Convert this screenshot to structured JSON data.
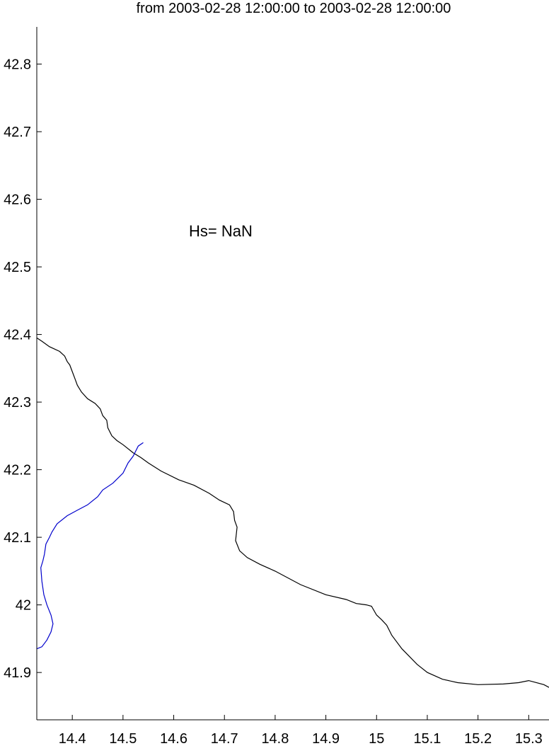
{
  "title": "from 2003-02-28 12:00:00 to 2003-02-28 12:00:00",
  "annotation": "Hs= NaN",
  "colors": {
    "coastline": "#000000",
    "river": "#0000cc",
    "axes": "#000000",
    "background": "#ffffff"
  },
  "map": {
    "xlim": [
      14.33,
      15.34
    ],
    "ylim": [
      41.83,
      42.855
    ],
    "x_ticks": [
      "14.4",
      "14.5",
      "14.6",
      "14.7",
      "14.8",
      "14.9",
      "15",
      "15.1",
      "15.2",
      "15.3"
    ],
    "y_ticks": [
      "41.9",
      "42",
      "42.1",
      "42.2",
      "42.3",
      "42.4",
      "42.5",
      "42.6",
      "42.7",
      "42.8"
    ],
    "annotation_pos": [
      14.63,
      42.545
    ],
    "coastline": [
      [
        14.33,
        42.395
      ],
      [
        14.34,
        42.39
      ],
      [
        14.355,
        42.382
      ],
      [
        14.375,
        42.375
      ],
      [
        14.385,
        42.368
      ],
      [
        14.39,
        42.36
      ],
      [
        14.395,
        42.355
      ],
      [
        14.4,
        42.345
      ],
      [
        14.405,
        42.335
      ],
      [
        14.41,
        42.325
      ],
      [
        14.418,
        42.315
      ],
      [
        14.43,
        42.305
      ],
      [
        14.445,
        42.298
      ],
      [
        14.455,
        42.29
      ],
      [
        14.46,
        42.28
      ],
      [
        14.468,
        42.273
      ],
      [
        14.47,
        42.262
      ],
      [
        14.478,
        42.25
      ],
      [
        14.488,
        42.243
      ],
      [
        14.5,
        42.237
      ],
      [
        14.52,
        42.225
      ],
      [
        14.535,
        42.218
      ],
      [
        14.55,
        42.21
      ],
      [
        14.575,
        42.198
      ],
      [
        14.61,
        42.185
      ],
      [
        14.64,
        42.177
      ],
      [
        14.67,
        42.165
      ],
      [
        14.69,
        42.155
      ],
      [
        14.71,
        42.148
      ],
      [
        14.718,
        42.138
      ],
      [
        14.72,
        42.125
      ],
      [
        14.725,
        42.115
      ],
      [
        14.722,
        42.095
      ],
      [
        14.73,
        42.08
      ],
      [
        14.745,
        42.07
      ],
      [
        14.77,
        42.06
      ],
      [
        14.8,
        42.05
      ],
      [
        14.85,
        42.03
      ],
      [
        14.9,
        42.015
      ],
      [
        14.94,
        42.008
      ],
      [
        14.96,
        42.002
      ],
      [
        14.98,
        42.0
      ],
      [
        14.99,
        41.998
      ],
      [
        15.0,
        41.985
      ],
      [
        15.01,
        41.978
      ],
      [
        15.02,
        41.97
      ],
      [
        15.03,
        41.955
      ],
      [
        15.05,
        41.935
      ],
      [
        15.08,
        41.912
      ],
      [
        15.1,
        41.9
      ],
      [
        15.13,
        41.89
      ],
      [
        15.16,
        41.885
      ],
      [
        15.2,
        41.882
      ],
      [
        15.25,
        41.883
      ],
      [
        15.28,
        41.885
      ],
      [
        15.3,
        41.888
      ],
      [
        15.33,
        41.882
      ],
      [
        15.34,
        41.878
      ]
    ],
    "river": [
      [
        14.54,
        42.24
      ],
      [
        14.53,
        42.235
      ],
      [
        14.52,
        42.22
      ],
      [
        14.51,
        42.21
      ],
      [
        14.5,
        42.195
      ],
      [
        14.48,
        42.18
      ],
      [
        14.46,
        42.17
      ],
      [
        14.45,
        42.16
      ],
      [
        14.43,
        42.148
      ],
      [
        14.41,
        42.14
      ],
      [
        14.39,
        42.132
      ],
      [
        14.37,
        42.12
      ],
      [
        14.36,
        42.108
      ],
      [
        14.355,
        42.1
      ],
      [
        14.348,
        42.09
      ],
      [
        14.345,
        42.075
      ],
      [
        14.342,
        42.065
      ],
      [
        14.338,
        42.055
      ],
      [
        14.34,
        42.035
      ],
      [
        14.344,
        42.015
      ],
      [
        14.35,
        42.0
      ],
      [
        14.358,
        41.985
      ],
      [
        14.362,
        41.972
      ],
      [
        14.358,
        41.96
      ],
      [
        14.35,
        41.948
      ],
      [
        14.34,
        41.938
      ],
      [
        14.33,
        41.935
      ]
    ]
  }
}
